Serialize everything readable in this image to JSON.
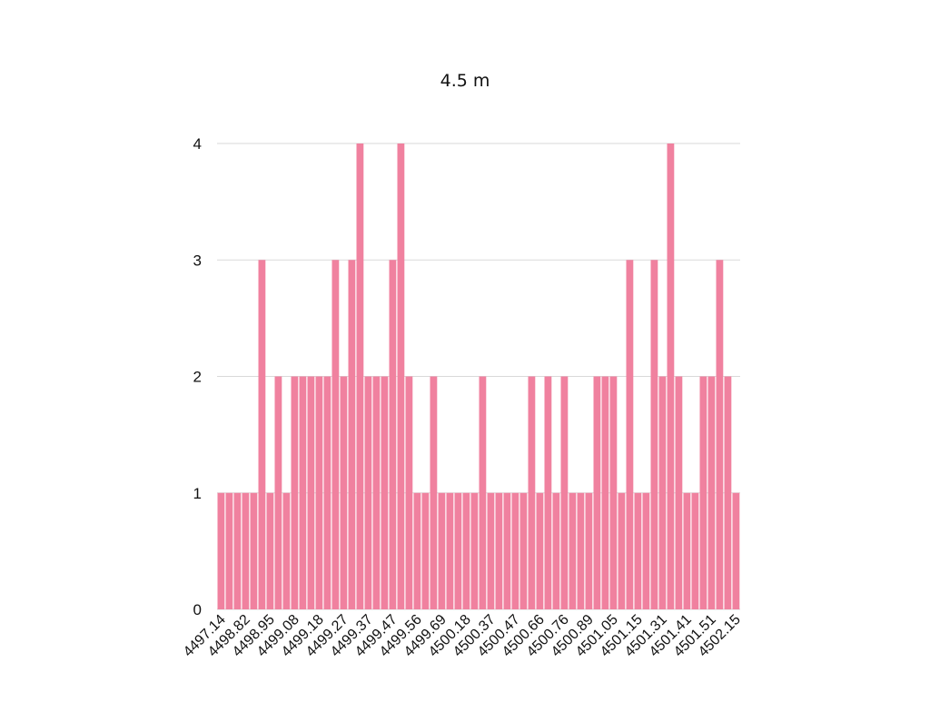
{
  "chart_data": {
    "type": "bar",
    "title": "4.5 m",
    "xlabel": "",
    "ylabel": "",
    "ylim": [
      0,
      4
    ],
    "yticks": [
      "0",
      "1",
      "2",
      "3",
      "4"
    ],
    "grid": "horizontal",
    "legend": "none",
    "bar_color": "#f0819f",
    "grid_color": "#d9d9d9",
    "tick_labels": [
      "4497.14",
      "4498.82",
      "4498.95",
      "4499.08",
      "4499.18",
      "4499.27",
      "4499.37",
      "4499.47",
      "4499.56",
      "4499.69",
      "4500.18",
      "4500.37",
      "4500.47",
      "4500.66",
      "4500.76",
      "4500.89",
      "4501.05",
      "4501.15",
      "4501.31",
      "4501.41",
      "4501.51",
      "4502.15"
    ],
    "values": [
      1,
      1,
      1,
      1,
      1,
      3,
      1,
      2,
      1,
      2,
      2,
      2,
      2,
      2,
      3,
      2,
      3,
      4,
      2,
      2,
      2,
      3,
      4,
      2,
      1,
      1,
      2,
      1,
      1,
      1,
      1,
      1,
      2,
      1,
      1,
      1,
      1,
      1,
      2,
      1,
      2,
      1,
      2,
      1,
      1,
      1,
      2,
      2,
      2,
      1,
      3,
      1,
      1,
      3,
      2,
      4,
      2,
      1,
      1,
      2,
      2,
      3,
      2,
      1
    ]
  }
}
